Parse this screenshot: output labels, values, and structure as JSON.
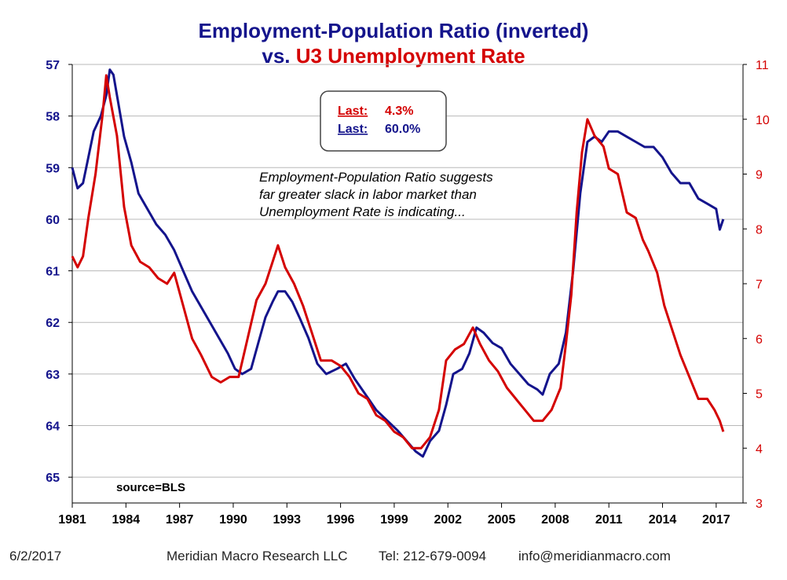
{
  "title": {
    "line1": "Employment-Population  Ratio (inverted)",
    "line2_prefix": "vs.",
    "line2_main": "U3 Unemployment Rate"
  },
  "legend_box": {
    "items": [
      {
        "label": "Last:",
        "value": "4.3%",
        "color": "#d40000"
      },
      {
        "label": "Last:",
        "value": "60.0%",
        "color": "#14148c"
      }
    ]
  },
  "annotation": [
    "Employment-Population Ratio suggests",
    "far greater slack in labor market than",
    "Unemployment Rate is indicating..."
  ],
  "source_note": "source=BLS",
  "footer": {
    "date": "6/2/2017",
    "company": "Meridian Macro Research LLC",
    "phone": "Tel: 212-679-0094",
    "email": "info@meridianmacro.com"
  },
  "colors": {
    "epop": "#14148c",
    "u3": "#d40000",
    "grid": "#b8b8b8",
    "axis": "#000000"
  },
  "chart_data": {
    "type": "line",
    "x_ticks": [
      "1981",
      "1984",
      "1987",
      "1990",
      "1993",
      "1996",
      "1999",
      "2002",
      "2005",
      "2008",
      "2011",
      "2014",
      "2017"
    ],
    "xlim": [
      1981,
      2018.5
    ],
    "left_axis": {
      "inverted": true,
      "ylim": [
        57,
        65.5
      ],
      "ticks": [
        57,
        58,
        59,
        60,
        61,
        62,
        63,
        64,
        65
      ],
      "color": "#14148c"
    },
    "right_axis": {
      "ylim": [
        3,
        11
      ],
      "ticks": [
        3,
        4,
        5,
        6,
        7,
        8,
        9,
        10,
        11
      ],
      "color": "#d40000"
    },
    "grid": "horizontal",
    "series": [
      {
        "axis": "left",
        "color": "#14148c",
        "points": [
          [
            1981.0,
            59.0
          ],
          [
            1981.3,
            59.4
          ],
          [
            1981.6,
            59.3
          ],
          [
            1981.9,
            58.8
          ],
          [
            1982.2,
            58.3
          ],
          [
            1982.6,
            58.0
          ],
          [
            1982.9,
            57.6
          ],
          [
            1983.1,
            57.1
          ],
          [
            1983.3,
            57.2
          ],
          [
            1983.6,
            57.8
          ],
          [
            1983.9,
            58.4
          ],
          [
            1984.3,
            58.9
          ],
          [
            1984.7,
            59.5
          ],
          [
            1985.2,
            59.8
          ],
          [
            1985.7,
            60.1
          ],
          [
            1986.2,
            60.3
          ],
          [
            1986.7,
            60.6
          ],
          [
            1987.2,
            61.0
          ],
          [
            1987.7,
            61.4
          ],
          [
            1988.2,
            61.7
          ],
          [
            1988.7,
            62.0
          ],
          [
            1989.2,
            62.3
          ],
          [
            1989.7,
            62.6
          ],
          [
            1990.1,
            62.9
          ],
          [
            1990.5,
            63.0
          ],
          [
            1991.0,
            62.9
          ],
          [
            1991.4,
            62.4
          ],
          [
            1991.8,
            61.9
          ],
          [
            1992.2,
            61.6
          ],
          [
            1992.5,
            61.4
          ],
          [
            1992.9,
            61.4
          ],
          [
            1993.3,
            61.6
          ],
          [
            1993.7,
            61.9
          ],
          [
            1994.2,
            62.3
          ],
          [
            1994.7,
            62.8
          ],
          [
            1995.2,
            63.0
          ],
          [
            1995.8,
            62.9
          ],
          [
            1996.3,
            62.8
          ],
          [
            1996.8,
            63.1
          ],
          [
            1997.4,
            63.4
          ],
          [
            1998.0,
            63.7
          ],
          [
            1998.6,
            63.9
          ],
          [
            1999.2,
            64.1
          ],
          [
            1999.7,
            64.3
          ],
          [
            2000.2,
            64.5
          ],
          [
            2000.6,
            64.6
          ],
          [
            2001.0,
            64.3
          ],
          [
            2001.5,
            64.1
          ],
          [
            2001.9,
            63.6
          ],
          [
            2002.3,
            63.0
          ],
          [
            2002.8,
            62.9
          ],
          [
            2003.2,
            62.6
          ],
          [
            2003.6,
            62.1
          ],
          [
            2004.0,
            62.2
          ],
          [
            2004.5,
            62.4
          ],
          [
            2005.0,
            62.5
          ],
          [
            2005.5,
            62.8
          ],
          [
            2006.0,
            63.0
          ],
          [
            2006.5,
            63.2
          ],
          [
            2007.0,
            63.3
          ],
          [
            2007.3,
            63.4
          ],
          [
            2007.7,
            63.0
          ],
          [
            2008.2,
            62.8
          ],
          [
            2008.6,
            62.2
          ],
          [
            2009.0,
            61.0
          ],
          [
            2009.4,
            59.5
          ],
          [
            2009.8,
            58.5
          ],
          [
            2010.2,
            58.4
          ],
          [
            2010.6,
            58.5
          ],
          [
            2011.0,
            58.3
          ],
          [
            2011.5,
            58.3
          ],
          [
            2012.0,
            58.4
          ],
          [
            2012.5,
            58.5
          ],
          [
            2013.0,
            58.6
          ],
          [
            2013.5,
            58.6
          ],
          [
            2014.0,
            58.8
          ],
          [
            2014.5,
            59.1
          ],
          [
            2015.0,
            59.3
          ],
          [
            2015.5,
            59.3
          ],
          [
            2016.0,
            59.6
          ],
          [
            2016.5,
            59.7
          ],
          [
            2017.0,
            59.8
          ],
          [
            2017.2,
            60.2
          ],
          [
            2017.4,
            60.0
          ]
        ]
      },
      {
        "axis": "right",
        "color": "#d40000",
        "points": [
          [
            1981.0,
            7.5
          ],
          [
            1981.3,
            7.3
          ],
          [
            1981.6,
            7.5
          ],
          [
            1981.9,
            8.2
          ],
          [
            1982.3,
            9.0
          ],
          [
            1982.7,
            10.1
          ],
          [
            1982.9,
            10.8
          ],
          [
            1983.1,
            10.4
          ],
          [
            1983.5,
            9.7
          ],
          [
            1983.9,
            8.4
          ],
          [
            1984.3,
            7.7
          ],
          [
            1984.8,
            7.4
          ],
          [
            1985.3,
            7.3
          ],
          [
            1985.8,
            7.1
          ],
          [
            1986.3,
            7.0
          ],
          [
            1986.7,
            7.2
          ],
          [
            1987.2,
            6.6
          ],
          [
            1987.7,
            6.0
          ],
          [
            1988.2,
            5.7
          ],
          [
            1988.8,
            5.3
          ],
          [
            1989.3,
            5.2
          ],
          [
            1989.8,
            5.3
          ],
          [
            1990.3,
            5.3
          ],
          [
            1990.8,
            6.0
          ],
          [
            1991.3,
            6.7
          ],
          [
            1991.8,
            7.0
          ],
          [
            1992.2,
            7.4
          ],
          [
            1992.5,
            7.7
          ],
          [
            1992.9,
            7.3
          ],
          [
            1993.4,
            7.0
          ],
          [
            1993.9,
            6.6
          ],
          [
            1994.4,
            6.1
          ],
          [
            1994.9,
            5.6
          ],
          [
            1995.5,
            5.6
          ],
          [
            1996.0,
            5.5
          ],
          [
            1996.5,
            5.3
          ],
          [
            1997.0,
            5.0
          ],
          [
            1997.5,
            4.9
          ],
          [
            1998.0,
            4.6
          ],
          [
            1998.5,
            4.5
          ],
          [
            1999.0,
            4.3
          ],
          [
            1999.5,
            4.2
          ],
          [
            2000.0,
            4.0
          ],
          [
            2000.5,
            4.0
          ],
          [
            2001.0,
            4.2
          ],
          [
            2001.5,
            4.7
          ],
          [
            2001.9,
            5.6
          ],
          [
            2002.4,
            5.8
          ],
          [
            2002.9,
            5.9
          ],
          [
            2003.4,
            6.2
          ],
          [
            2003.8,
            5.9
          ],
          [
            2004.3,
            5.6
          ],
          [
            2004.8,
            5.4
          ],
          [
            2005.3,
            5.1
          ],
          [
            2005.8,
            4.9
          ],
          [
            2006.3,
            4.7
          ],
          [
            2006.8,
            4.5
          ],
          [
            2007.3,
            4.5
          ],
          [
            2007.8,
            4.7
          ],
          [
            2008.3,
            5.1
          ],
          [
            2008.6,
            5.9
          ],
          [
            2008.9,
            6.8
          ],
          [
            2009.2,
            8.3
          ],
          [
            2009.5,
            9.4
          ],
          [
            2009.8,
            10.0
          ],
          [
            2010.2,
            9.7
          ],
          [
            2010.7,
            9.5
          ],
          [
            2011.0,
            9.1
          ],
          [
            2011.5,
            9.0
          ],
          [
            2012.0,
            8.3
          ],
          [
            2012.5,
            8.2
          ],
          [
            2012.9,
            7.8
          ],
          [
            2013.2,
            7.6
          ],
          [
            2013.7,
            7.2
          ],
          [
            2014.1,
            6.6
          ],
          [
            2014.5,
            6.2
          ],
          [
            2015.0,
            5.7
          ],
          [
            2015.5,
            5.3
          ],
          [
            2016.0,
            4.9
          ],
          [
            2016.5,
            4.9
          ],
          [
            2016.9,
            4.7
          ],
          [
            2017.2,
            4.5
          ],
          [
            2017.4,
            4.3
          ]
        ]
      }
    ]
  }
}
